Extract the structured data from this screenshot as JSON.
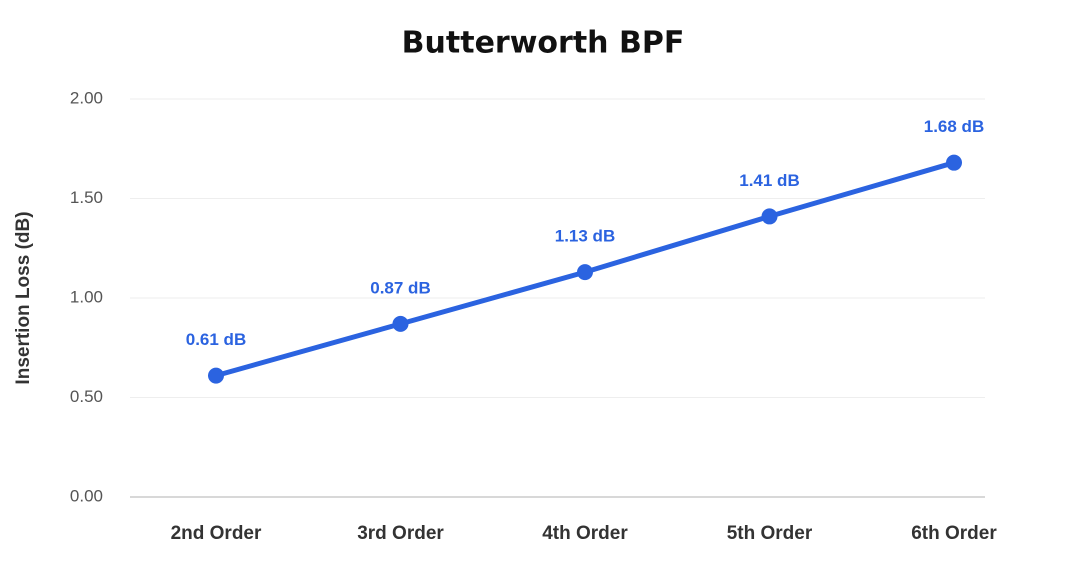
{
  "chart_data": {
    "type": "line",
    "title": "Butterworth BPF",
    "y_label": "Insertion Loss (dB)",
    "categories": [
      "2nd Order",
      "3rd Order",
      "4th Order",
      "5th Order",
      "6th Order"
    ],
    "series": [
      {
        "color": "#2b63e0",
        "values": [
          0.61,
          0.87,
          1.13,
          1.41,
          1.68
        ],
        "value_labels": [
          "0.61 dB",
          "0.87 dB",
          "1.13 dB",
          "1.41 dB",
          "1.68 dB"
        ]
      }
    ],
    "ylim": [
      0,
      2
    ],
    "yticks": [
      {
        "value": 0,
        "label": "0.00"
      },
      {
        "value": 0.5,
        "label": "0.50"
      },
      {
        "value": 1,
        "label": "1.00"
      },
      {
        "value": 1.5,
        "label": "1.50"
      },
      {
        "value": 2,
        "label": "2.00"
      }
    ],
    "grid": true
  }
}
